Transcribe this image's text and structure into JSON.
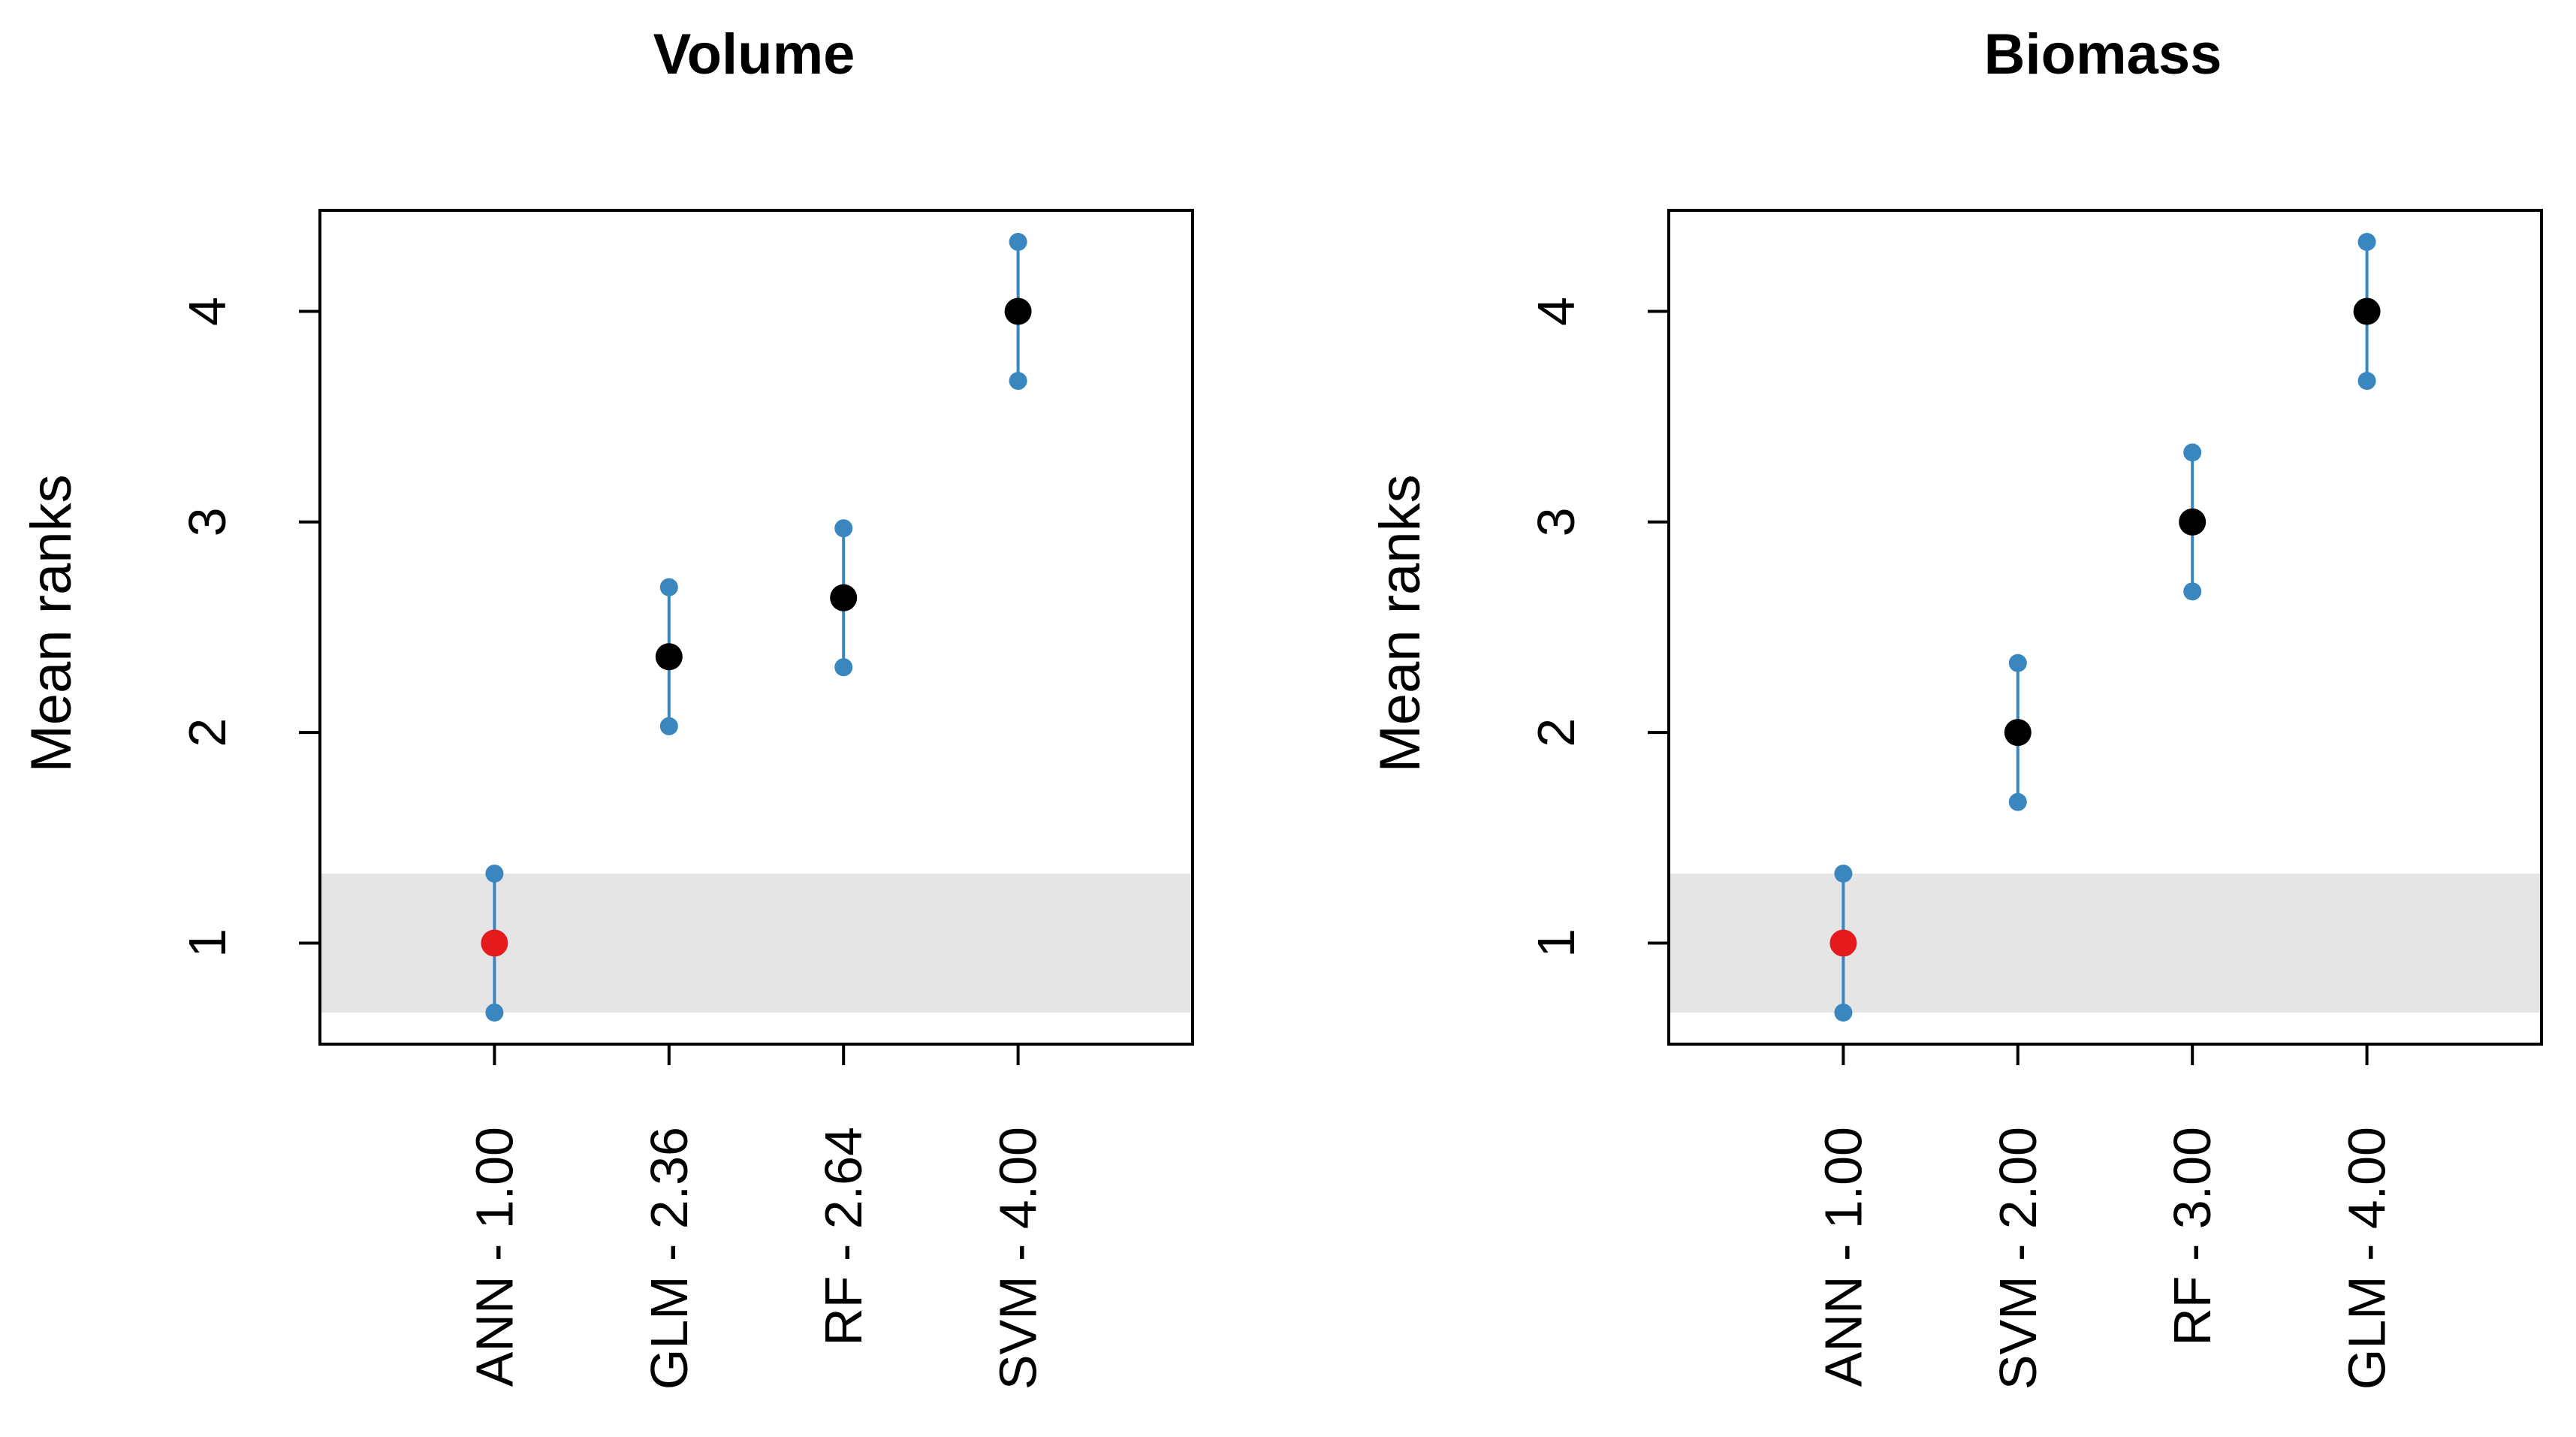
{
  "chart_data": [
    {
      "type": "scatter",
      "title": "Volume",
      "xlabel": "",
      "ylabel": "Mean ranks",
      "ylim": [
        0.52,
        4.48
      ],
      "yticks": [
        1,
        2,
        3,
        4
      ],
      "ytick_labels": [
        "1",
        "2",
        "3",
        "4"
      ],
      "categories": [
        "ANN - 1.00",
        "GLM - 2.36",
        "RF - 2.64",
        "SVM - 4.00"
      ],
      "values": [
        1.0,
        2.36,
        2.64,
        4.0
      ],
      "interval_low": [
        0.67,
        2.03,
        2.31,
        3.67
      ],
      "interval_high": [
        1.33,
        2.69,
        2.97,
        4.33
      ],
      "highlight_band": [
        0.67,
        1.33
      ],
      "best_index": 0,
      "colors": {
        "best": "#e41a1c",
        "point": "#000000",
        "interval": "#3a87c0",
        "band": "#e5e5e5"
      }
    },
    {
      "type": "scatter",
      "title": "Biomass",
      "xlabel": "",
      "ylabel": "Mean ranks",
      "ylim": [
        0.52,
        4.48
      ],
      "yticks": [
        1,
        2,
        3,
        4
      ],
      "ytick_labels": [
        "1",
        "2",
        "3",
        "4"
      ],
      "categories": [
        "ANN - 1.00",
        "SVM - 2.00",
        "RF - 3.00",
        "GLM - 4.00"
      ],
      "values": [
        1.0,
        2.0,
        3.0,
        4.0
      ],
      "interval_low": [
        0.67,
        1.67,
        2.67,
        3.67
      ],
      "interval_high": [
        1.33,
        2.33,
        3.33,
        4.33
      ],
      "highlight_band": [
        0.67,
        1.33
      ],
      "best_index": 0,
      "colors": {
        "best": "#e41a1c",
        "point": "#000000",
        "interval": "#3a87c0",
        "band": "#e5e5e5"
      }
    }
  ]
}
